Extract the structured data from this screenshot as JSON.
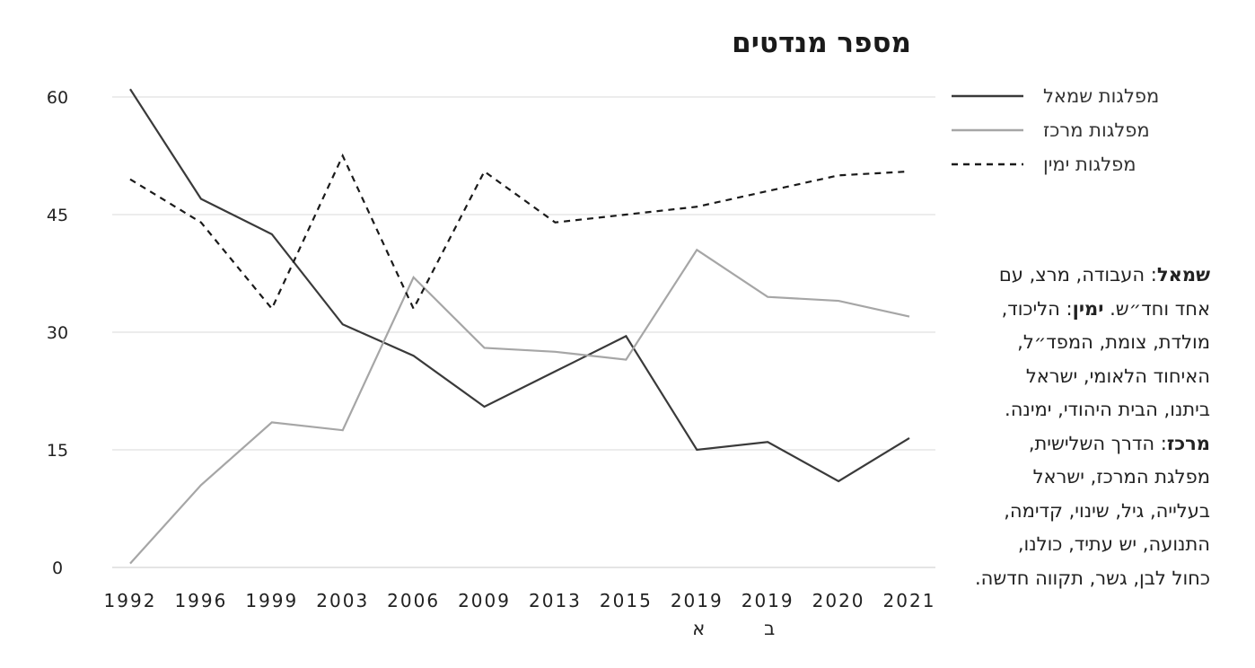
{
  "title": "מספר מנדטים",
  "legend": [
    {
      "label": "מפלגות שמאל",
      "style": "solid-dark"
    },
    {
      "label": "מפלגות מרכז",
      "style": "solid-gray"
    },
    {
      "label": "מפלגות ימין",
      "style": "dashed"
    }
  ],
  "description": [
    {
      "head": "שמאל",
      "text": ": העבודה, מרצ, עם אחד וחד״ש."
    },
    {
      "head": "ימין",
      "text": ": הליכוד, מולדת, צומת, המפד״ל, האיחוד הלאומי, ישראל ביתנו, הבית היהודי, ימינה."
    },
    {
      "head": "מרכז",
      "text": ": הדרך השלישית, מפלגת המרכז, ישראל בעלייה, גיל, שינוי, קדימה, התנועה, יש עתיד, כולנו, כחול לבן, גשר, תקווה חדשה."
    }
  ],
  "colors": {
    "left": "#3a3a3a",
    "center": "#a6a6a6",
    "right": "#1a1a1a",
    "grid": "#d9d9d9"
  },
  "chart_data": {
    "type": "line",
    "title": "מספר מנדטים",
    "categories": [
      "1992",
      "1996",
      "1999",
      "2003",
      "2006",
      "2009",
      "2013",
      "2015",
      "2019",
      "2019",
      "2020",
      "2021"
    ],
    "category_sublabels": [
      "",
      "",
      "",
      "",
      "",
      "",
      "",
      "",
      "א",
      "ב",
      "",
      ""
    ],
    "ylim": [
      0,
      60
    ],
    "yticks": [
      0,
      15,
      30,
      45,
      60
    ],
    "grid": true,
    "legend_position": "top-right",
    "series": [
      {
        "name": "מפלגות שמאל",
        "color": "#3a3a3a",
        "dash": "none",
        "values": [
          61,
          47,
          42.5,
          31,
          27,
          20.5,
          25,
          29.5,
          15,
          16,
          11,
          16.5
        ]
      },
      {
        "name": "מפלגות מרכז",
        "color": "#a6a6a6",
        "dash": "none",
        "values": [
          0.5,
          10.5,
          18.5,
          17.5,
          37,
          28,
          27.5,
          26.5,
          40.5,
          34.5,
          34,
          32
        ]
      },
      {
        "name": "מפלגות ימין",
        "color": "#1a1a1a",
        "dash": "dashed",
        "values": [
          49.5,
          44,
          33,
          52.5,
          33,
          50.5,
          44,
          45,
          46,
          48,
          50,
          50.5
        ]
      }
    ]
  }
}
